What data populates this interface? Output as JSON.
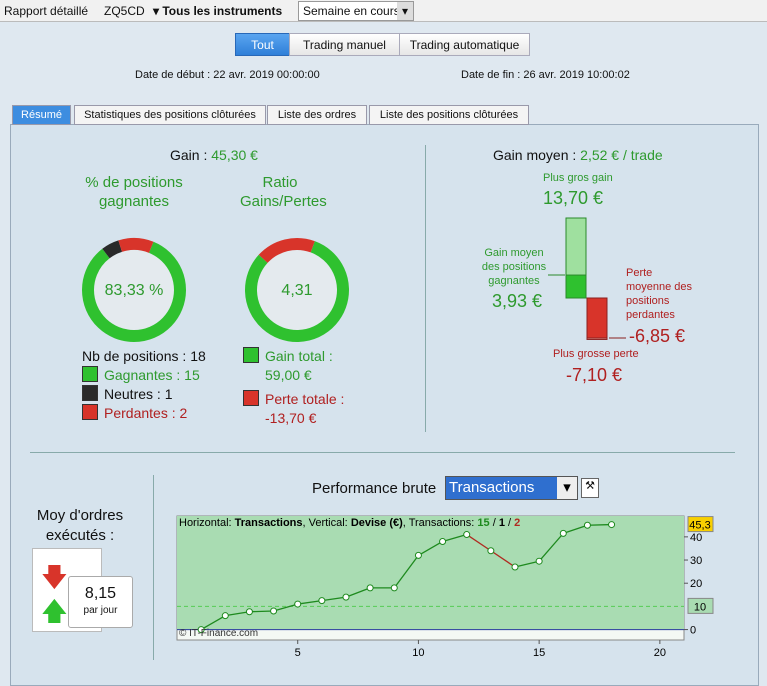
{
  "toolbar": {
    "items": [
      "Rapport détaillé",
      "ZQ5CD",
      "Tous les instruments"
    ],
    "period": "Semaine en cours"
  },
  "filters": {
    "buttons": [
      "Tout",
      "Trading manuel",
      "Trading automatique"
    ]
  },
  "dates": {
    "start_label": "Date de début :",
    "start": "22 avr. 2019 00:00:00",
    "end_label": "Date de fin :",
    "end": "26 avr. 2019 10:00:02"
  },
  "tabs": [
    "Résumé",
    "Statistiques des positions clôturées",
    "Liste des ordres",
    "Liste des positions clôturées"
  ],
  "summary": {
    "gain_label": "Gain :",
    "gain": "45,30 €",
    "win_title": "% de positions gagnantes",
    "win_pct": "83,33 %",
    "ratio_title": "Ratio Gains/Pertes",
    "ratio": "4,31",
    "positions_label": "Nb de positions :",
    "positions": 18,
    "outcomes": [
      {
        "label": "Gagnantes :",
        "count": 15,
        "color": "#2fc12f"
      },
      {
        "label": "Neutres :",
        "count": 1,
        "color": "#2a2a2a"
      },
      {
        "label": "Perdantes :",
        "count": 2,
        "color": "#d8342a"
      }
    ],
    "total_gain_label": "Gain total :",
    "total_gain": {
      "value": 59,
      "label": "59,00 €"
    },
    "total_loss_label": "Perte totale :",
    "total_loss": {
      "value": -13.7,
      "label": "-13,70 €"
    }
  },
  "average": {
    "title": "Gain moyen :",
    "value": "2,52 € / trade",
    "max_gain_label": "Plus gros gain",
    "max_gain": {
      "value": 13.7,
      "label": "13,70 €"
    },
    "avg_gain_label": "Gain moyen des positions gagnantes",
    "avg_gain": {
      "value": 3.93,
      "label": "3,93 €"
    },
    "avg_loss_label": "Perte moyenne des positions perdantes",
    "avg_loss": {
      "value": -6.85,
      "label": "-6,85 €"
    },
    "max_loss_label": "Plus grosse perte",
    "max_loss": {
      "value": -7.1,
      "label": "-7,10 €"
    }
  },
  "orders": {
    "title": "Moy d'ordres exécutés :",
    "value": "8,15",
    "unit": "par jour"
  },
  "performance": {
    "title": "Performance brute",
    "mode": "Transactions",
    "legend": [
      "Horizontal:",
      "Transactions",
      ", Vertical:",
      "Devise (€)",
      ", Transactions:"
    ],
    "watermark": "© IT-Finance.com",
    "chart_data": {
      "type": "line",
      "x": [
        1,
        2,
        3,
        4,
        5,
        6,
        7,
        8,
        9,
        10,
        11,
        12,
        13,
        14,
        15,
        16,
        17,
        18
      ],
      "values": [
        0,
        6,
        7.7,
        8,
        11,
        12.5,
        14,
        18,
        18,
        32,
        38,
        41,
        34,
        27,
        29.5,
        41.5,
        45,
        45.3
      ],
      "color": "#1e8a1e",
      "down_color": "#b02a20",
      "xlim": [
        0,
        21
      ],
      "xticks": [
        5,
        10,
        15,
        20
      ],
      "ylim": [
        -4.5,
        49
      ],
      "yticks": [
        0,
        20,
        30,
        40
      ],
      "markers": [
        {
          "value": 45.3,
          "label": "45,3"
        },
        {
          "value": 10,
          "label": "10"
        }
      ]
    }
  }
}
